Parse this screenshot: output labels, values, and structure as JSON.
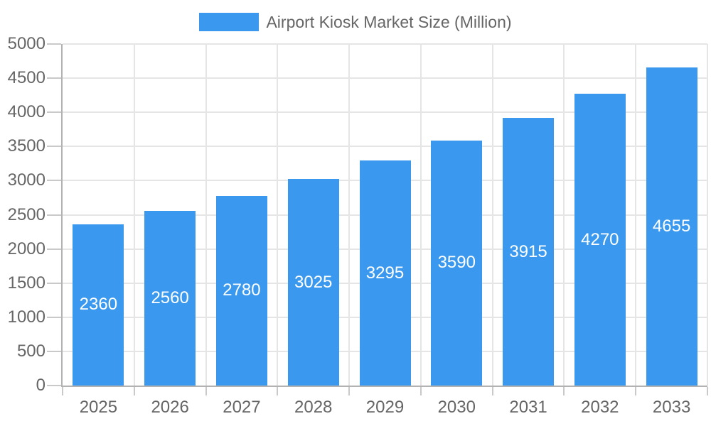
{
  "chart_data": {
    "type": "bar",
    "title": "",
    "legend": {
      "position": "top",
      "label": "Airport Kiosk Market Size (Million)"
    },
    "categories": [
      "2025",
      "2026",
      "2027",
      "2028",
      "2029",
      "2030",
      "2031",
      "2032",
      "2033"
    ],
    "values": [
      2360,
      2560,
      2780,
      3025,
      3295,
      3590,
      3915,
      4270,
      4655
    ],
    "xlabel": "",
    "ylabel": "",
    "ylim": [
      0,
      5000
    ],
    "ytick_step": 500,
    "grid": true,
    "colors": {
      "bar": "#3a99ee",
      "axis_text": "#666666",
      "value_label_text": "#ffffff",
      "gridline": "#e5e5e5",
      "axis_line": "#b2b2b2",
      "tick": "#c9c9c9",
      "background": "#ffffff"
    }
  }
}
